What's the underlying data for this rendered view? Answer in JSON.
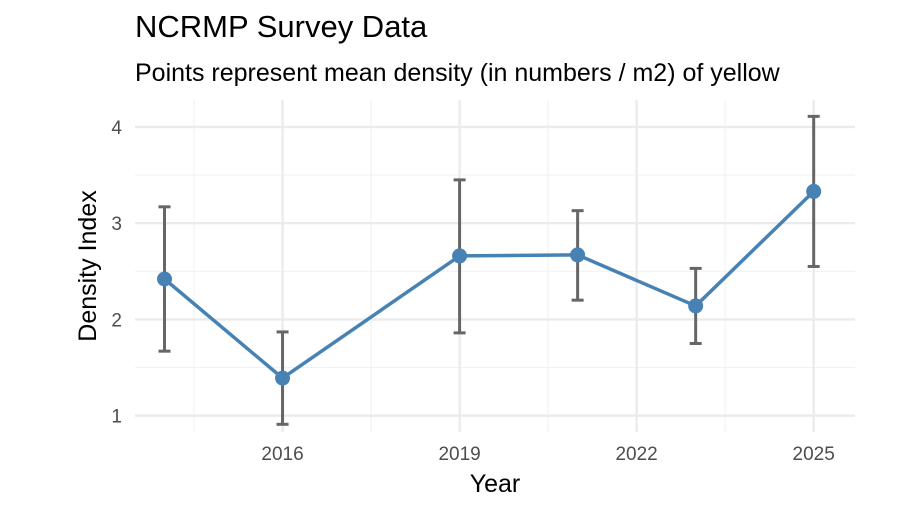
{
  "chart_data": {
    "type": "line",
    "title": "NCRMP Survey Data",
    "subtitle": "Points represent mean density (in numbers / m2) of yellow",
    "xlabel": "Year",
    "ylabel": "Density Index",
    "xlim": [
      2013.5,
      2025.7
    ],
    "ylim": [
      0.83,
      4.28
    ],
    "xticks": [
      2016,
      2019,
      2022,
      2025
    ],
    "yticks": [
      1,
      2,
      3,
      4
    ],
    "grid": true,
    "legend": "none",
    "series": [
      {
        "name": "Density",
        "color": "#4682B4",
        "errorbar_color": "#666666",
        "points": [
          {
            "x": 2014,
            "y": 2.42,
            "lower": 1.67,
            "upper": 3.17
          },
          {
            "x": 2016,
            "y": 1.39,
            "lower": 0.91,
            "upper": 1.87
          },
          {
            "x": 2019,
            "y": 2.66,
            "lower": 1.86,
            "upper": 3.45
          },
          {
            "x": 2021,
            "y": 2.67,
            "lower": 2.2,
            "upper": 3.13
          },
          {
            "x": 2023,
            "y": 2.14,
            "lower": 1.75,
            "upper": 2.53
          },
          {
            "x": 2025,
            "y": 3.33,
            "lower": 2.55,
            "upper": 4.11
          }
        ]
      }
    ]
  }
}
